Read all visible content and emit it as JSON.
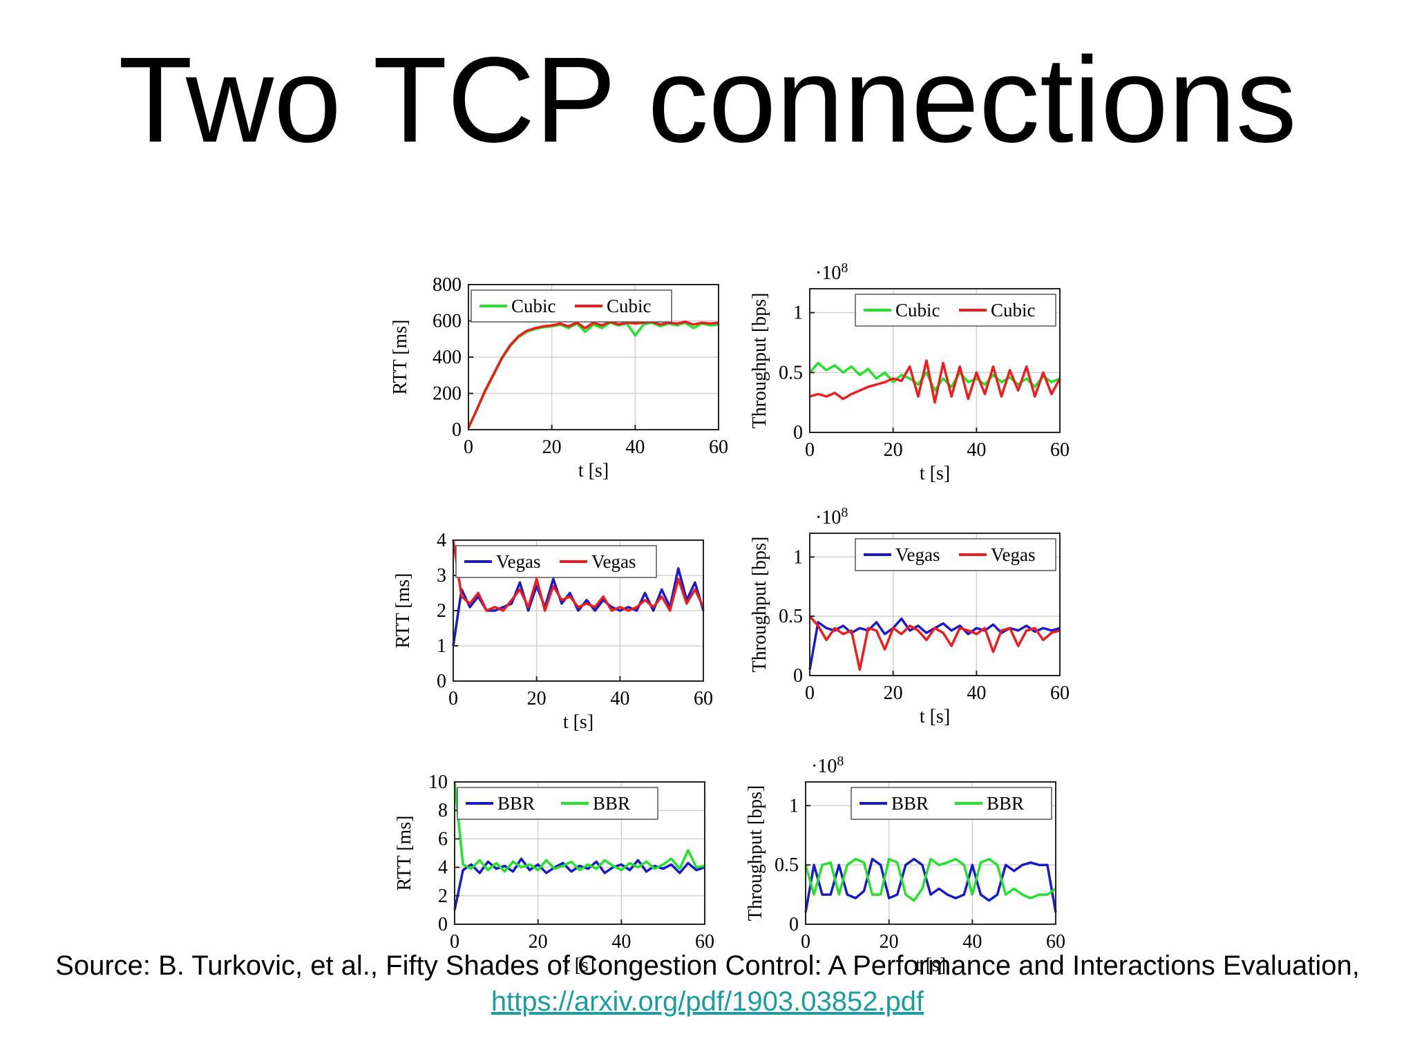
{
  "slide": {
    "title": "Two TCP connections",
    "source_text": "Source: B. Turkovic, et al., Fifty Shades of Congestion Control: A Performance and Interactions Evaluation,",
    "source_link": "https://arxiv.org/pdf/1903.03852.pdf"
  },
  "colors": {
    "green": "#22e22a",
    "red": "#ee1c1c",
    "blue": "#1a1acc",
    "link": "#1a9da0"
  },
  "chart_data": [
    {
      "id": "rtt-cubic",
      "type": "line",
      "xlabel": "t [s]",
      "ylabel": "RTT [ms]",
      "xlim": [
        0,
        60
      ],
      "ylim": [
        0,
        800
      ],
      "xticks": [
        0,
        20,
        40,
        60
      ],
      "yticks": [
        0,
        200,
        400,
        600,
        800
      ],
      "yticklabels": [
        "0",
        "200",
        "400",
        "600",
        "800"
      ],
      "exponent": "",
      "legend": "top-left",
      "grid": true,
      "series": [
        {
          "name": "Cubic",
          "color": "#22e22a",
          "x": [
            0,
            2,
            4,
            6,
            8,
            10,
            12,
            14,
            16,
            18,
            20,
            22,
            24,
            26,
            28,
            30,
            32,
            34,
            36,
            38,
            40,
            42,
            44,
            46,
            48,
            50,
            52,
            54,
            56,
            58,
            60
          ],
          "y": [
            10,
            110,
            210,
            300,
            390,
            460,
            510,
            540,
            555,
            565,
            570,
            580,
            560,
            585,
            540,
            580,
            560,
            590,
            575,
            585,
            520,
            580,
            590,
            570,
            585,
            575,
            590,
            560,
            585,
            575,
            580
          ]
        },
        {
          "name": "Cubic",
          "color": "#ee1c1c",
          "x": [
            0,
            2,
            4,
            6,
            8,
            10,
            12,
            14,
            16,
            18,
            20,
            22,
            24,
            26,
            28,
            30,
            32,
            34,
            36,
            38,
            40,
            42,
            44,
            46,
            48,
            50,
            52,
            54,
            56,
            58,
            60
          ],
          "y": [
            10,
            110,
            215,
            305,
            395,
            465,
            515,
            545,
            560,
            570,
            575,
            585,
            570,
            590,
            560,
            590,
            575,
            595,
            580,
            590,
            585,
            590,
            595,
            580,
            590,
            585,
            595,
            580,
            590,
            585,
            590
          ]
        }
      ]
    },
    {
      "id": "tput-cubic",
      "type": "line",
      "xlabel": "t [s]",
      "ylabel": "Throughput [bps]",
      "xlim": [
        0,
        60
      ],
      "ylim": [
        0,
        1.2
      ],
      "xticks": [
        0,
        20,
        40,
        60
      ],
      "yticks": [
        0,
        0.5,
        1
      ],
      "yticklabels": [
        "0",
        "0.5",
        "1"
      ],
      "exponent": "·10^8",
      "legend": "top-right",
      "grid": true,
      "series": [
        {
          "name": "Cubic",
          "color": "#22e22a",
          "x": [
            0,
            2,
            4,
            6,
            8,
            10,
            12,
            14,
            16,
            18,
            20,
            22,
            24,
            26,
            28,
            30,
            32,
            34,
            36,
            38,
            40,
            42,
            44,
            46,
            48,
            50,
            52,
            54,
            56,
            58,
            60
          ],
          "y": [
            0.5,
            0.58,
            0.52,
            0.56,
            0.5,
            0.55,
            0.48,
            0.53,
            0.45,
            0.5,
            0.42,
            0.48,
            0.45,
            0.4,
            0.5,
            0.35,
            0.45,
            0.38,
            0.5,
            0.42,
            0.45,
            0.4,
            0.48,
            0.42,
            0.46,
            0.4,
            0.45,
            0.38,
            0.47,
            0.42,
            0.45
          ]
        },
        {
          "name": "Cubic",
          "color": "#ee1c1c",
          "x": [
            0,
            2,
            4,
            6,
            8,
            10,
            12,
            14,
            16,
            18,
            20,
            22,
            24,
            26,
            28,
            30,
            32,
            34,
            36,
            38,
            40,
            42,
            44,
            46,
            48,
            50,
            52,
            54,
            56,
            58,
            60
          ],
          "y": [
            0.3,
            0.32,
            0.3,
            0.33,
            0.28,
            0.32,
            0.35,
            0.38,
            0.4,
            0.42,
            0.45,
            0.43,
            0.55,
            0.3,
            0.6,
            0.25,
            0.58,
            0.3,
            0.55,
            0.28,
            0.5,
            0.32,
            0.55,
            0.3,
            0.52,
            0.35,
            0.55,
            0.3,
            0.5,
            0.32,
            0.45
          ]
        }
      ]
    },
    {
      "id": "rtt-vegas",
      "type": "line",
      "xlabel": "t [s]",
      "ylabel": "RTT [ms]",
      "xlim": [
        0,
        60
      ],
      "ylim": [
        0,
        4
      ],
      "xticks": [
        0,
        20,
        40,
        60
      ],
      "yticks": [
        0,
        1,
        2,
        3,
        4
      ],
      "yticklabels": [
        "0",
        "1",
        "2",
        "3",
        "4"
      ],
      "exponent": "",
      "legend": "top-left",
      "grid": true,
      "series": [
        {
          "name": "Vegas",
          "color": "#1a1acc",
          "x": [
            0,
            2,
            4,
            6,
            8,
            10,
            12,
            14,
            16,
            18,
            20,
            22,
            24,
            26,
            28,
            30,
            32,
            34,
            36,
            38,
            40,
            42,
            44,
            46,
            48,
            50,
            52,
            54,
            56,
            58,
            60
          ],
          "y": [
            1,
            2.6,
            2.1,
            2.4,
            2.0,
            2.0,
            2.1,
            2.2,
            2.8,
            2.0,
            2.7,
            2.1,
            2.9,
            2.2,
            2.5,
            2.0,
            2.3,
            2.0,
            2.3,
            2.1,
            2.0,
            2.1,
            2.0,
            2.5,
            2.0,
            2.6,
            2.1,
            3.2,
            2.3,
            2.8,
            2.0
          ]
        },
        {
          "name": "Vegas",
          "color": "#ee1c1c",
          "x": [
            0,
            2,
            4,
            6,
            8,
            10,
            12,
            14,
            16,
            18,
            20,
            22,
            24,
            26,
            28,
            30,
            32,
            34,
            36,
            38,
            40,
            42,
            44,
            46,
            48,
            50,
            52,
            54,
            56,
            58,
            60
          ],
          "y": [
            4,
            2.4,
            2.2,
            2.5,
            2.0,
            2.1,
            2.0,
            2.3,
            2.6,
            2.1,
            2.9,
            2.0,
            2.7,
            2.3,
            2.4,
            2.1,
            2.2,
            2.1,
            2.4,
            2.0,
            2.1,
            2.0,
            2.1,
            2.3,
            2.1,
            2.4,
            2.0,
            2.9,
            2.2,
            2.6,
            2.1
          ]
        }
      ]
    },
    {
      "id": "tput-vegas",
      "type": "line",
      "xlabel": "t [s]",
      "ylabel": "Throughput [bps]",
      "xlim": [
        0,
        60
      ],
      "ylim": [
        0,
        1.2
      ],
      "xticks": [
        0,
        20,
        40,
        60
      ],
      "yticks": [
        0,
        0.5,
        1
      ],
      "yticklabels": [
        "0",
        "0.5",
        "1"
      ],
      "exponent": "·10^8",
      "legend": "top-right",
      "grid": true,
      "series": [
        {
          "name": "Vegas",
          "color": "#1a1acc",
          "x": [
            0,
            2,
            4,
            6,
            8,
            10,
            12,
            14,
            16,
            18,
            20,
            22,
            24,
            26,
            28,
            30,
            32,
            34,
            36,
            38,
            40,
            42,
            44,
            46,
            48,
            50,
            52,
            54,
            56,
            58,
            60
          ],
          "y": [
            0.05,
            0.45,
            0.4,
            0.38,
            0.42,
            0.36,
            0.4,
            0.38,
            0.45,
            0.35,
            0.4,
            0.48,
            0.38,
            0.42,
            0.36,
            0.4,
            0.44,
            0.38,
            0.42,
            0.35,
            0.4,
            0.38,
            0.43,
            0.36,
            0.4,
            0.38,
            0.42,
            0.37,
            0.4,
            0.38,
            0.4
          ]
        },
        {
          "name": "Vegas",
          "color": "#ee1c1c",
          "x": [
            0,
            2,
            4,
            6,
            8,
            10,
            12,
            14,
            16,
            18,
            20,
            22,
            24,
            26,
            28,
            30,
            32,
            34,
            36,
            38,
            40,
            42,
            44,
            46,
            48,
            50,
            52,
            54,
            56,
            58,
            60
          ],
          "y": [
            0.5,
            0.42,
            0.3,
            0.4,
            0.35,
            0.38,
            0.05,
            0.4,
            0.38,
            0.22,
            0.4,
            0.35,
            0.42,
            0.38,
            0.3,
            0.4,
            0.36,
            0.25,
            0.4,
            0.38,
            0.35,
            0.4,
            0.2,
            0.38,
            0.4,
            0.25,
            0.38,
            0.4,
            0.3,
            0.36,
            0.38
          ]
        }
      ]
    },
    {
      "id": "rtt-bbr",
      "type": "line",
      "xlabel": "t [s]",
      "ylabel": "RTT [ms]",
      "xlim": [
        0,
        60
      ],
      "ylim": [
        0,
        10
      ],
      "xticks": [
        0,
        20,
        40,
        60
      ],
      "yticks": [
        0,
        2,
        4,
        6,
        8,
        10
      ],
      "yticklabels": [
        "0",
        "2",
        "4",
        "6",
        "8",
        "10"
      ],
      "exponent": "",
      "legend": "top-left",
      "grid": true,
      "series": [
        {
          "name": "BBR",
          "color": "#1a1acc",
          "x": [
            0,
            2,
            4,
            6,
            8,
            10,
            12,
            14,
            16,
            18,
            20,
            22,
            24,
            26,
            28,
            30,
            32,
            34,
            36,
            38,
            40,
            42,
            44,
            46,
            48,
            50,
            52,
            54,
            56,
            58,
            60
          ],
          "y": [
            1,
            3.8,
            4.2,
            3.6,
            4.4,
            3.9,
            4.1,
            3.7,
            4.6,
            3.8,
            4.2,
            3.6,
            4.0,
            4.3,
            3.7,
            4.1,
            3.9,
            4.4,
            3.6,
            4.0,
            4.2,
            3.8,
            4.5,
            3.7,
            4.1,
            3.9,
            4.2,
            3.6,
            4.3,
            3.8,
            4.0
          ]
        },
        {
          "name": "BBR",
          "color": "#22e22a",
          "x": [
            0,
            2,
            4,
            6,
            8,
            10,
            12,
            14,
            16,
            18,
            20,
            22,
            24,
            26,
            28,
            30,
            32,
            34,
            36,
            38,
            40,
            42,
            44,
            46,
            48,
            50,
            52,
            54,
            56,
            58,
            60
          ],
          "y": [
            10,
            4.2,
            3.9,
            4.5,
            3.8,
            4.3,
            3.7,
            4.4,
            4.0,
            4.2,
            3.8,
            4.5,
            3.9,
            4.1,
            4.4,
            3.8,
            4.2,
            3.9,
            4.5,
            4.1,
            3.8,
            4.3,
            4.0,
            4.4,
            3.9,
            4.2,
            4.6,
            3.9,
            5.2,
            4.0,
            4.1
          ]
        }
      ]
    },
    {
      "id": "tput-bbr",
      "type": "line",
      "xlabel": "t [s]",
      "ylabel": "Throughput [bps]",
      "xlim": [
        0,
        60
      ],
      "ylim": [
        0,
        1.2
      ],
      "xticks": [
        0,
        20,
        40,
        60
      ],
      "yticks": [
        0,
        0.5,
        1
      ],
      "yticklabels": [
        "0",
        "0.5",
        "1"
      ],
      "exponent": "·10^8",
      "legend": "top-right",
      "grid": true,
      "series": [
        {
          "name": "BBR",
          "color": "#1a1acc",
          "x": [
            0,
            2,
            4,
            6,
            8,
            10,
            12,
            14,
            16,
            18,
            20,
            22,
            24,
            26,
            28,
            30,
            32,
            34,
            36,
            38,
            40,
            42,
            44,
            46,
            48,
            50,
            52,
            54,
            56,
            58,
            60
          ],
          "y": [
            0.1,
            0.5,
            0.25,
            0.25,
            0.5,
            0.25,
            0.22,
            0.28,
            0.55,
            0.5,
            0.22,
            0.25,
            0.5,
            0.55,
            0.5,
            0.25,
            0.3,
            0.25,
            0.22,
            0.25,
            0.5,
            0.25,
            0.2,
            0.25,
            0.5,
            0.45,
            0.5,
            0.52,
            0.5,
            0.5,
            0.1
          ]
        },
        {
          "name": "BBR",
          "color": "#22e22a",
          "x": [
            0,
            2,
            4,
            6,
            8,
            10,
            12,
            14,
            16,
            18,
            20,
            22,
            24,
            26,
            28,
            30,
            32,
            34,
            36,
            38,
            40,
            42,
            44,
            46,
            48,
            50,
            52,
            54,
            56,
            58,
            60
          ],
          "y": [
            0.5,
            0.25,
            0.5,
            0.52,
            0.25,
            0.5,
            0.55,
            0.52,
            0.25,
            0.25,
            0.55,
            0.52,
            0.25,
            0.2,
            0.3,
            0.55,
            0.5,
            0.52,
            0.55,
            0.5,
            0.25,
            0.52,
            0.55,
            0.5,
            0.25,
            0.3,
            0.25,
            0.22,
            0.25,
            0.25,
            0.3
          ]
        }
      ]
    }
  ]
}
